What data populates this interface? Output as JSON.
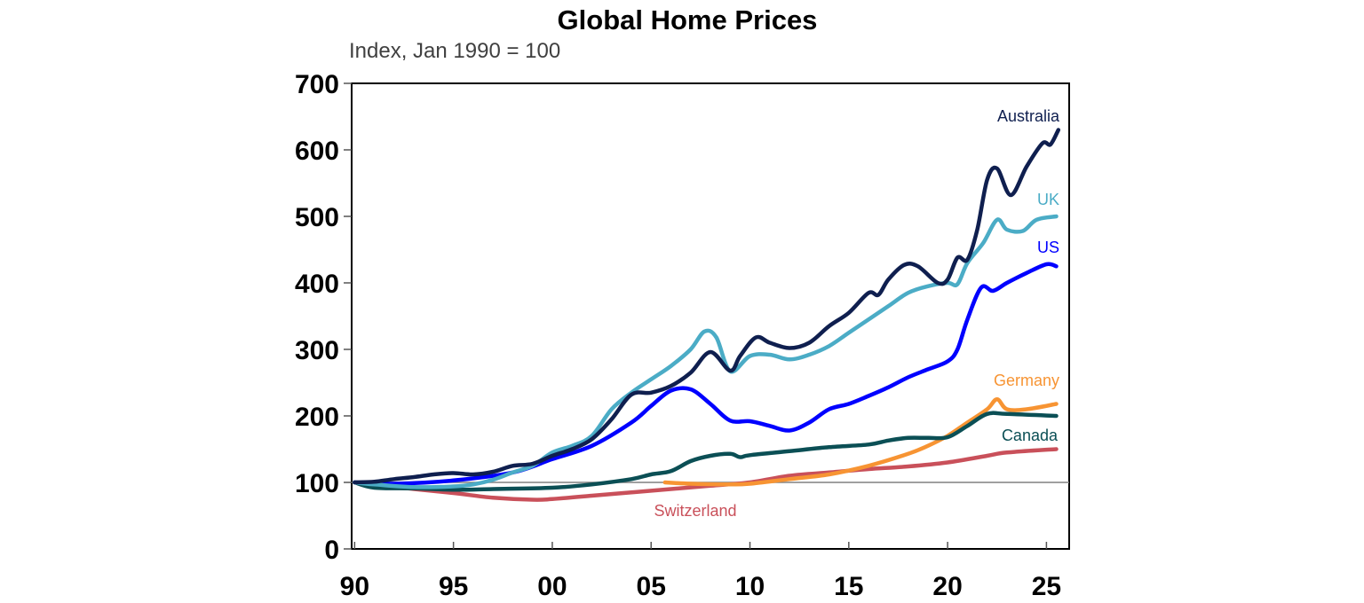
{
  "chart_data": {
    "type": "line",
    "title": "Global Home Prices",
    "subtitle": "Index, Jan 1990 = 100",
    "xlabel": "",
    "ylabel": "",
    "xlim": [
      1989.85,
      2026.15
    ],
    "ylim": [
      0,
      700
    ],
    "yticks": [
      0,
      100,
      200,
      300,
      400,
      500,
      600,
      700
    ],
    "ytick_labels": [
      "0",
      "100",
      "200",
      "300",
      "400",
      "500",
      "600",
      "700"
    ],
    "xticks": [
      1990,
      1995,
      2000,
      2005,
      2010,
      2015,
      2020,
      2025
    ],
    "xtick_labels": [
      "90",
      "95",
      "00",
      "05",
      "10",
      "15",
      "20",
      "25"
    ],
    "reference_line": 100,
    "grid": false,
    "legend": "inline labels at line ends",
    "series": [
      {
        "name": "Australia",
        "color": "#0f1f4f",
        "label_pos": "top-right",
        "points": [
          [
            1990,
            100
          ],
          [
            1991,
            101
          ],
          [
            1992,
            105
          ],
          [
            1993,
            108
          ],
          [
            1994,
            112
          ],
          [
            1995,
            114
          ],
          [
            1996,
            112
          ],
          [
            1997,
            116
          ],
          [
            1998,
            125
          ],
          [
            1999,
            128
          ],
          [
            2000,
            140
          ],
          [
            2001,
            150
          ],
          [
            2002,
            165
          ],
          [
            2003,
            195
          ],
          [
            2004,
            232
          ],
          [
            2005,
            235
          ],
          [
            2006,
            245
          ],
          [
            2007,
            265
          ],
          [
            2008,
            296
          ],
          [
            2009,
            268
          ],
          [
            2009.5,
            290
          ],
          [
            2010.3,
            318
          ],
          [
            2011,
            310
          ],
          [
            2012,
            302
          ],
          [
            2013,
            310
          ],
          [
            2014,
            335
          ],
          [
            2015,
            355
          ],
          [
            2016,
            385
          ],
          [
            2016.5,
            382
          ],
          [
            2017,
            405
          ],
          [
            2017.8,
            427
          ],
          [
            2018.5,
            425
          ],
          [
            2019.5,
            400
          ],
          [
            2020,
            405
          ],
          [
            2020.5,
            438
          ],
          [
            2021,
            435
          ],
          [
            2021.5,
            480
          ],
          [
            2022,
            555
          ],
          [
            2022.5,
            572
          ],
          [
            2023.2,
            532
          ],
          [
            2024,
            575
          ],
          [
            2024.8,
            610
          ],
          [
            2025.2,
            608
          ],
          [
            2025.6,
            630
          ]
        ]
      },
      {
        "name": "UK",
        "color": "#4bacc6",
        "label_pos": "right",
        "points": [
          [
            1990,
            100
          ],
          [
            1991,
            97
          ],
          [
            1993,
            93
          ],
          [
            1995,
            94
          ],
          [
            1996,
            97
          ],
          [
            1997,
            104
          ],
          [
            1998,
            115
          ],
          [
            1999,
            125
          ],
          [
            2000,
            145
          ],
          [
            2001,
            155
          ],
          [
            2002,
            170
          ],
          [
            2003,
            210
          ],
          [
            2004,
            235
          ],
          [
            2005,
            255
          ],
          [
            2006,
            275
          ],
          [
            2007,
            300
          ],
          [
            2007.7,
            327
          ],
          [
            2008.3,
            318
          ],
          [
            2009,
            267
          ],
          [
            2010,
            290
          ],
          [
            2011,
            292
          ],
          [
            2012,
            285
          ],
          [
            2013,
            292
          ],
          [
            2014,
            305
          ],
          [
            2015,
            325
          ],
          [
            2016,
            345
          ],
          [
            2017,
            365
          ],
          [
            2018,
            385
          ],
          [
            2019,
            395
          ],
          [
            2020,
            400
          ],
          [
            2020.5,
            398
          ],
          [
            2021,
            430
          ],
          [
            2021.8,
            460
          ],
          [
            2022.5,
            495
          ],
          [
            2023,
            480
          ],
          [
            2023.8,
            478
          ],
          [
            2024.5,
            495
          ],
          [
            2025.5,
            500
          ]
        ]
      },
      {
        "name": "US",
        "color": "#0000ff",
        "label_pos": "right",
        "points": [
          [
            1990,
            100
          ],
          [
            1992,
            98
          ],
          [
            1995,
            103
          ],
          [
            1998,
            115
          ],
          [
            2000,
            135
          ],
          [
            2002,
            155
          ],
          [
            2004,
            190
          ],
          [
            2005,
            215
          ],
          [
            2006,
            238
          ],
          [
            2007,
            240
          ],
          [
            2008,
            218
          ],
          [
            2009,
            193
          ],
          [
            2010,
            192
          ],
          [
            2011,
            185
          ],
          [
            2012,
            178
          ],
          [
            2013,
            190
          ],
          [
            2014,
            210
          ],
          [
            2015,
            218
          ],
          [
            2016,
            230
          ],
          [
            2017,
            243
          ],
          [
            2018,
            258
          ],
          [
            2019,
            270
          ],
          [
            2020,
            282
          ],
          [
            2020.5,
            300
          ],
          [
            2021,
            345
          ],
          [
            2021.7,
            393
          ],
          [
            2022.3,
            388
          ],
          [
            2023,
            400
          ],
          [
            2024,
            415
          ],
          [
            2025,
            428
          ],
          [
            2025.5,
            425
          ]
        ]
      },
      {
        "name": "Germany",
        "color": "#f79433",
        "label_pos": "right",
        "points": [
          [
            2005.7,
            100
          ],
          [
            2007,
            98
          ],
          [
            2009,
            97
          ],
          [
            2010,
            98
          ],
          [
            2012,
            105
          ],
          [
            2014,
            112
          ],
          [
            2016,
            125
          ],
          [
            2018,
            143
          ],
          [
            2019,
            155
          ],
          [
            2020,
            170
          ],
          [
            2021,
            190
          ],
          [
            2022,
            210
          ],
          [
            2022.5,
            225
          ],
          [
            2023,
            210
          ],
          [
            2024,
            210
          ],
          [
            2025.5,
            218
          ]
        ]
      },
      {
        "name": "Canada",
        "color": "#0b4f55",
        "label_pos": "right",
        "points": [
          [
            1990,
            100
          ],
          [
            1991,
            92
          ],
          [
            1993,
            91
          ],
          [
            1995,
            89
          ],
          [
            1997,
            90
          ],
          [
            2000,
            92
          ],
          [
            2002,
            97
          ],
          [
            2004,
            105
          ],
          [
            2005,
            112
          ],
          [
            2006,
            117
          ],
          [
            2007,
            132
          ],
          [
            2008,
            140
          ],
          [
            2009,
            143
          ],
          [
            2009.5,
            138
          ],
          [
            2010,
            141
          ],
          [
            2012,
            147
          ],
          [
            2014,
            153
          ],
          [
            2016,
            157
          ],
          [
            2017,
            163
          ],
          [
            2018,
            167
          ],
          [
            2019,
            167
          ],
          [
            2020,
            168
          ],
          [
            2021,
            185
          ],
          [
            2022,
            203
          ],
          [
            2023,
            203
          ],
          [
            2025.5,
            200
          ]
        ]
      },
      {
        "name": "Switzerland",
        "color": "#c9505a",
        "label_pos": "bottom",
        "points": [
          [
            1990,
            100
          ],
          [
            1991,
            96
          ],
          [
            1993,
            90
          ],
          [
            1995,
            84
          ],
          [
            1997,
            77
          ],
          [
            1999,
            74
          ],
          [
            2000,
            75
          ],
          [
            2002,
            80
          ],
          [
            2004,
            85
          ],
          [
            2006,
            90
          ],
          [
            2008,
            95
          ],
          [
            2010,
            100
          ],
          [
            2012,
            110
          ],
          [
            2014,
            115
          ],
          [
            2016,
            120
          ],
          [
            2018,
            124
          ],
          [
            2020,
            130
          ],
          [
            2022,
            140
          ],
          [
            2023,
            145
          ],
          [
            2025.5,
            150
          ]
        ]
      }
    ]
  }
}
